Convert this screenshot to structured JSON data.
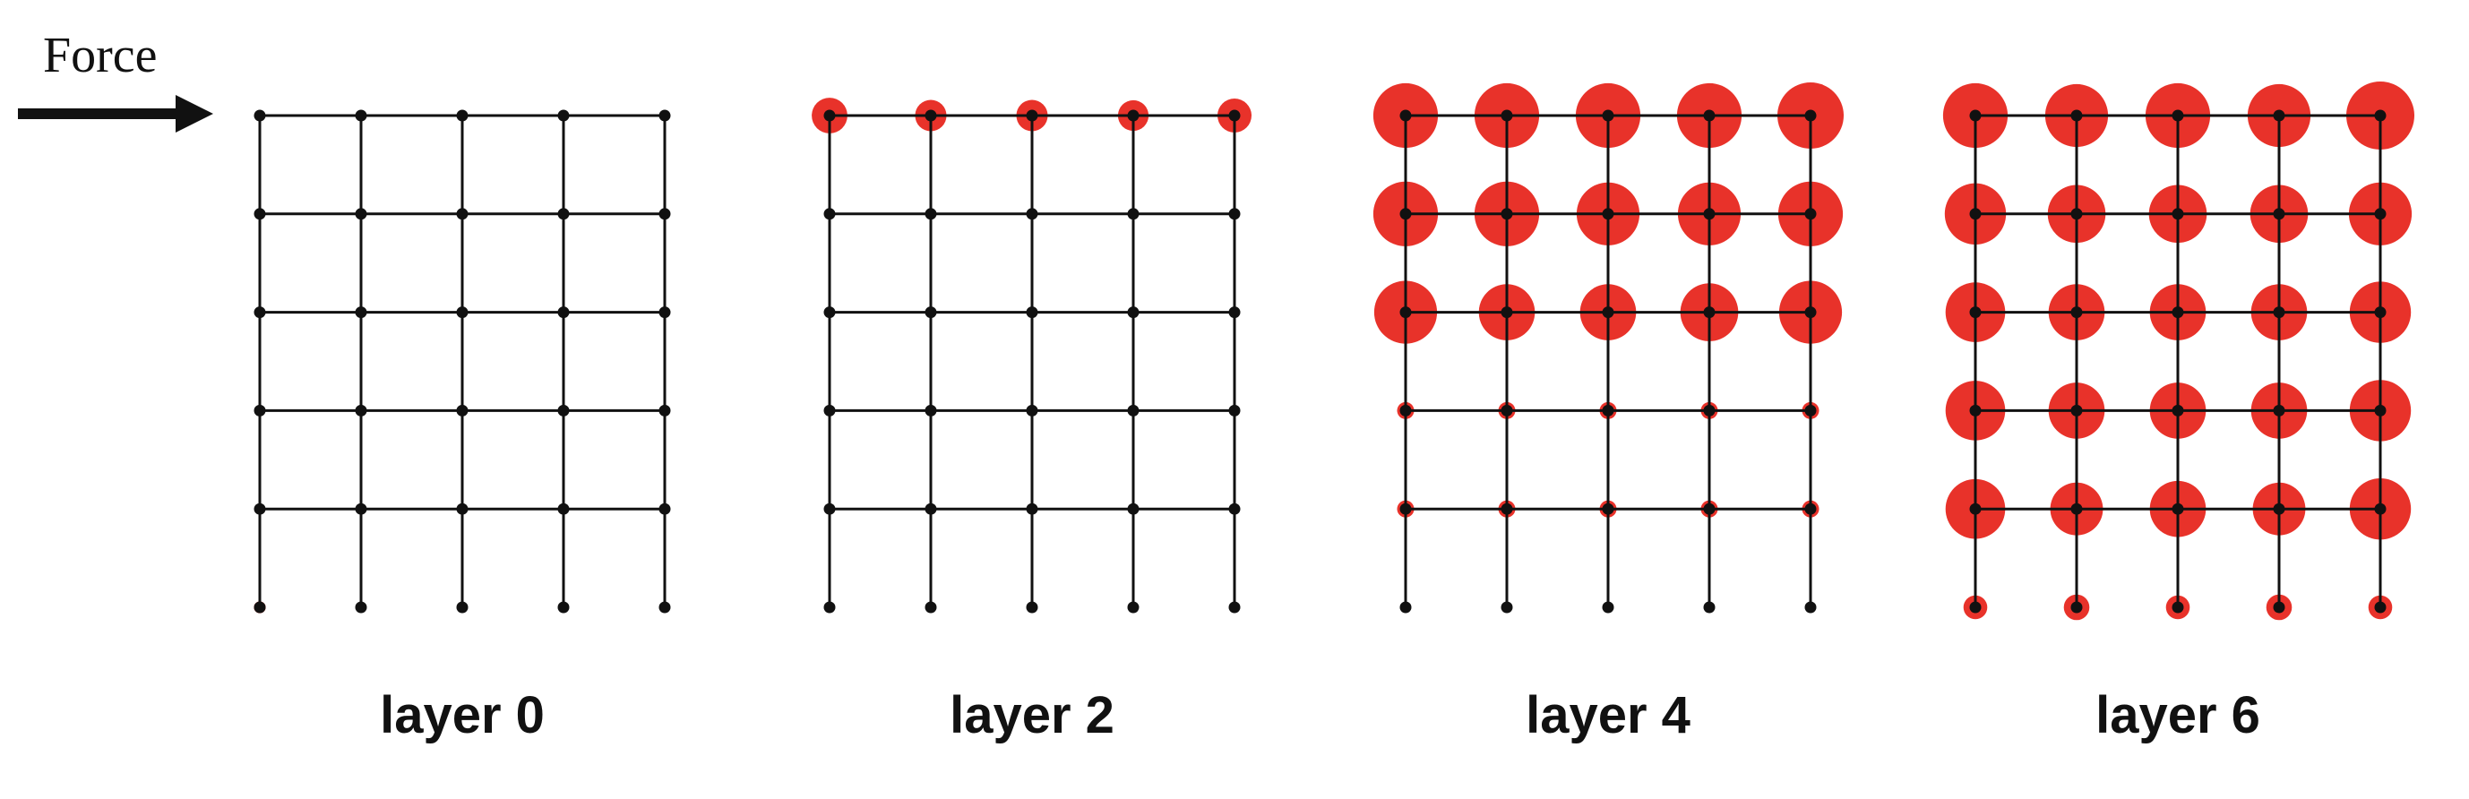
{
  "force": {
    "label": "Force",
    "direction": "left-to-right"
  },
  "colors": {
    "node": "#111111",
    "edge": "#111111",
    "activation": "#e8322a"
  },
  "grid": {
    "columns": 5,
    "rows": 6,
    "has_bottom_horizontal_edge": false
  },
  "panels": [
    {
      "label": "layer 0",
      "activation_rows": [
        [
          0.25,
          0.0,
          0.0,
          0.0,
          0.0
        ],
        [
          0.2,
          0.0,
          0.0,
          0.0,
          0.0
        ],
        [
          0.0,
          0.0,
          0.0,
          0.0,
          0.0
        ],
        [
          0.0,
          0.0,
          0.0,
          0.0,
          0.0
        ],
        [
          0.0,
          0.0,
          0.0,
          0.0,
          0.0
        ],
        [
          0.35,
          0.25,
          0.15,
          0.0,
          0.0
        ]
      ]
    },
    {
      "label": "layer 2",
      "activation_rows": [
        [
          1.05,
          0.92,
          0.92,
          0.9,
          1.0
        ],
        [
          0.22,
          0.0,
          0.0,
          0.0,
          0.0
        ],
        [
          0.0,
          0.0,
          0.0,
          0.0,
          0.0
        ],
        [
          0.0,
          0.0,
          0.0,
          0.0,
          0.0
        ],
        [
          0.0,
          0.0,
          0.0,
          0.0,
          0.0
        ],
        [
          0.0,
          0.0,
          0.0,
          0.0,
          0.0
        ]
      ]
    },
    {
      "label": "layer 4",
      "activation_rows": [
        [
          1.9,
          1.9,
          1.9,
          1.9,
          1.95
        ],
        [
          1.9,
          1.9,
          1.85,
          1.85,
          1.9
        ],
        [
          1.85,
          1.65,
          1.65,
          1.7,
          1.85
        ],
        [
          0.5,
          0.5,
          0.5,
          0.5,
          0.5
        ],
        [
          0.5,
          0.5,
          0.5,
          0.5,
          0.5
        ],
        [
          0.0,
          0.0,
          0.0,
          0.0,
          0.0
        ]
      ]
    },
    {
      "label": "layer 6",
      "activation_rows": [
        [
          1.9,
          1.85,
          1.9,
          1.85,
          2.0
        ],
        [
          1.8,
          1.7,
          1.7,
          1.7,
          1.85
        ],
        [
          1.75,
          1.65,
          1.65,
          1.65,
          1.8
        ],
        [
          1.75,
          1.65,
          1.65,
          1.65,
          1.8
        ],
        [
          1.75,
          1.55,
          1.65,
          1.55,
          1.8
        ],
        [
          0.7,
          0.75,
          0.7,
          0.75,
          0.7
        ]
      ]
    }
  ]
}
